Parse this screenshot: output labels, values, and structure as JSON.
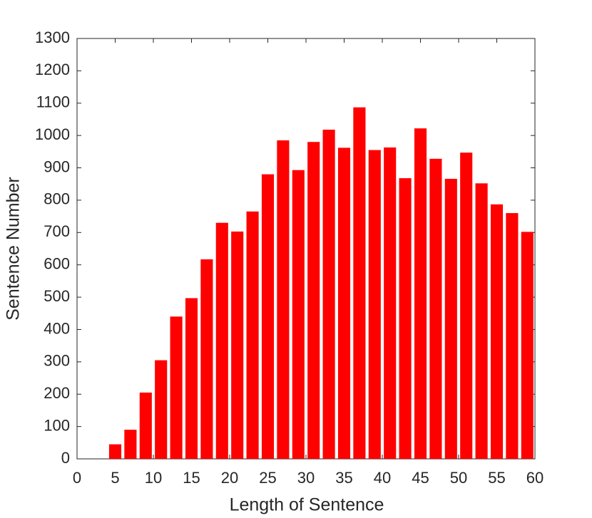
{
  "chart_data": {
    "type": "bar",
    "xlabel": "Length of Sentence",
    "ylabel": "Sentence Number",
    "x": [
      5,
      7,
      9,
      11,
      13,
      15,
      17,
      19,
      21,
      23,
      25,
      27,
      29,
      31,
      33,
      35,
      37,
      39,
      41,
      43,
      45,
      47,
      49,
      51,
      53,
      55,
      57,
      59
    ],
    "values": [
      45,
      90,
      205,
      305,
      440,
      497,
      617,
      730,
      703,
      765,
      880,
      985,
      893,
      980,
      1018,
      962,
      1087,
      955,
      963,
      868,
      1022,
      928,
      866,
      947,
      852,
      787,
      760,
      702
    ],
    "color": "#ff0000",
    "xlim": [
      0,
      60
    ],
    "xticks": [
      0,
      5,
      10,
      15,
      20,
      25,
      30,
      35,
      40,
      45,
      50,
      55,
      60
    ],
    "ylim": [
      0,
      1300
    ],
    "yticks": [
      0,
      100,
      200,
      300,
      400,
      500,
      600,
      700,
      800,
      900,
      1000,
      1100,
      1200,
      1300
    ],
    "grid": false
  }
}
